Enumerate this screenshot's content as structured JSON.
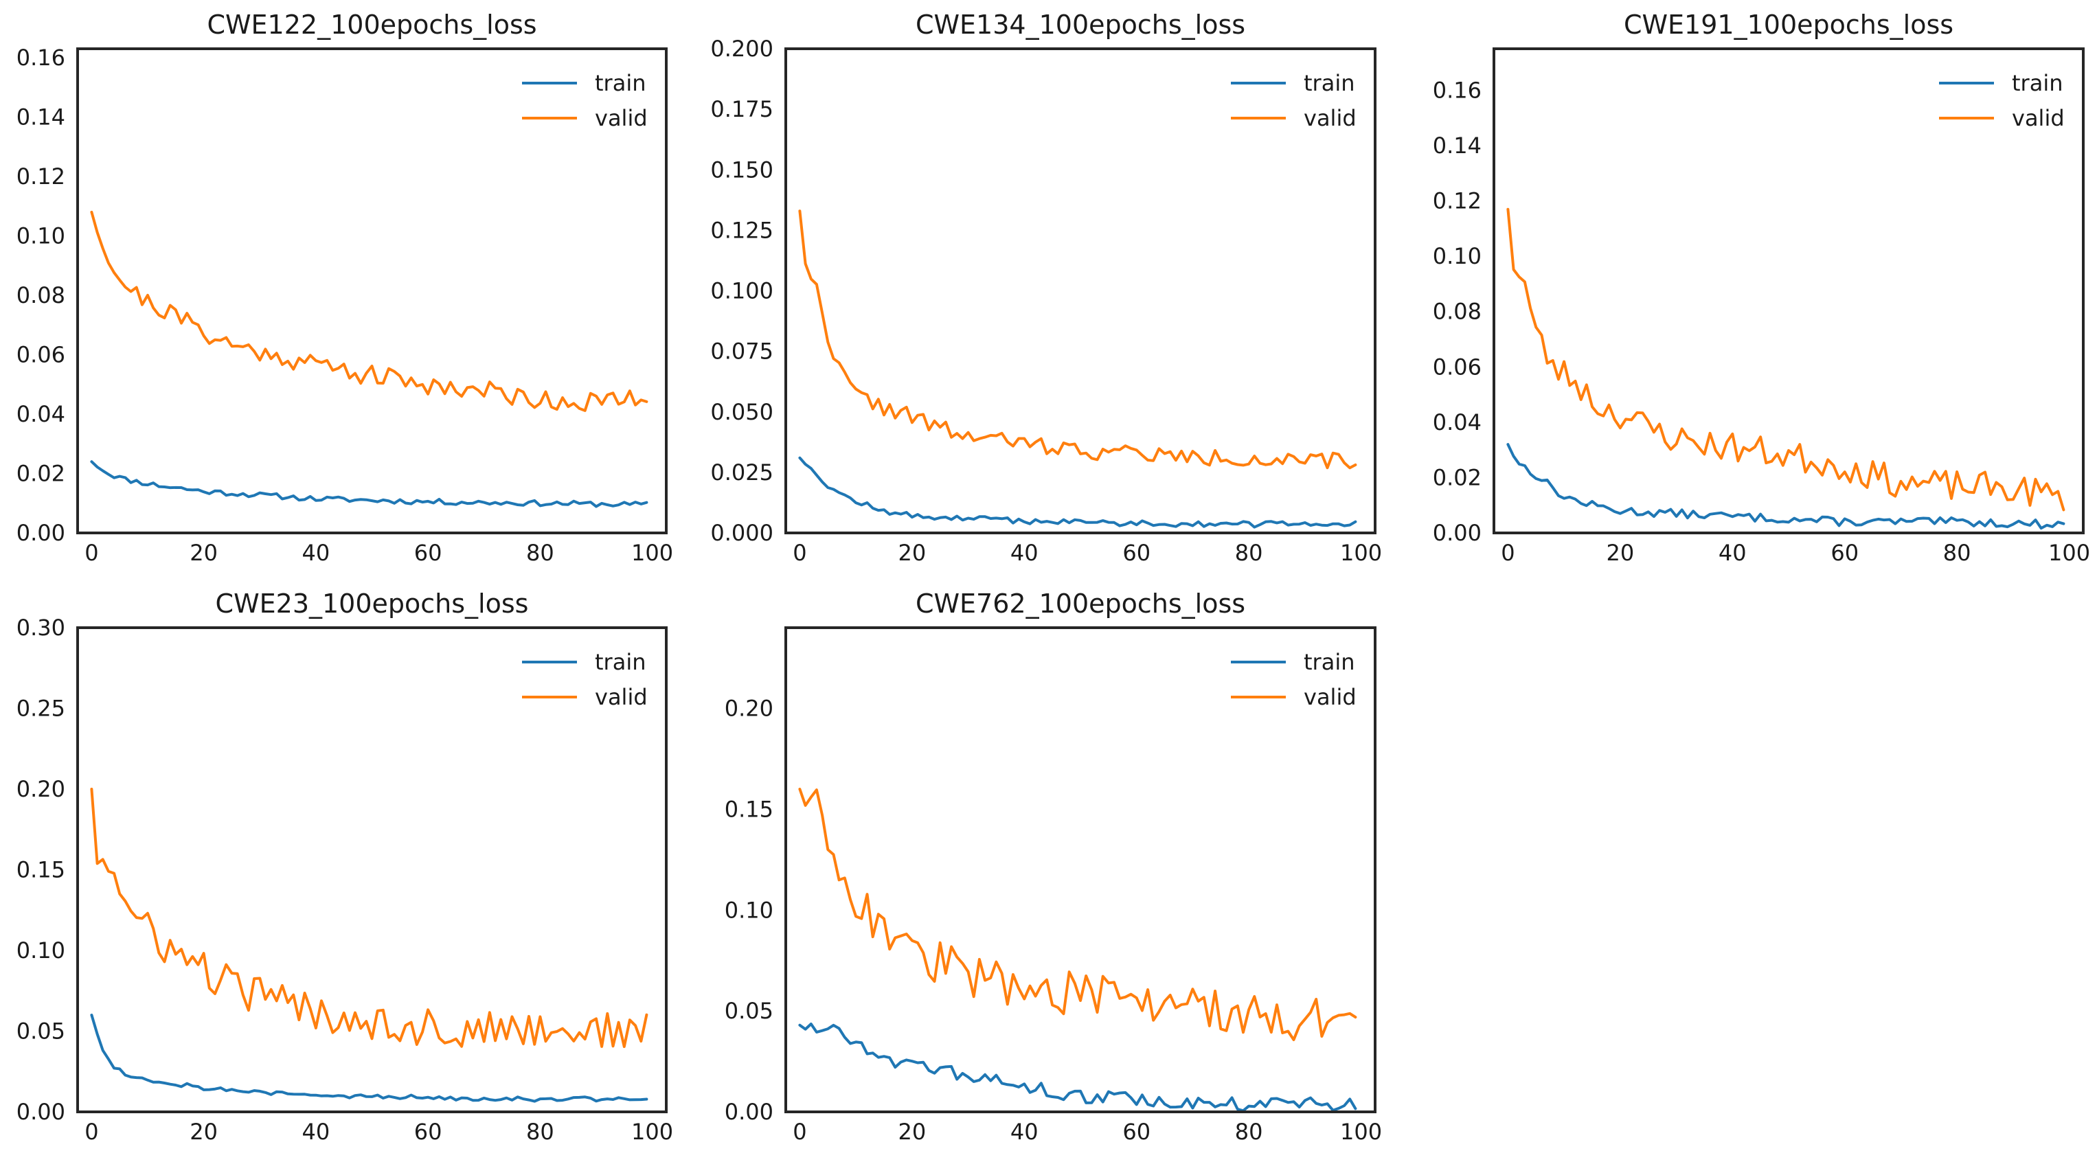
{
  "chart_data": [
    {
      "type": "line",
      "title": "CWE122_100epochs_loss",
      "xlim": [
        -2.5,
        102.5
      ],
      "ylim": [
        0,
        0.163
      ],
      "xticks": [
        0,
        20,
        40,
        60,
        80,
        100
      ],
      "xtick_labels": [
        "0",
        "20",
        "40",
        "60",
        "80",
        "100"
      ],
      "yticks": [
        0,
        0.02,
        0.04,
        0.06,
        0.08,
        0.1,
        0.12,
        0.14,
        0.16
      ],
      "ytick_labels": [
        "0.00",
        "0.02",
        "0.04",
        "0.06",
        "0.08",
        "0.10",
        "0.12",
        "0.14",
        "0.16"
      ],
      "legend": {
        "position": "top-right",
        "entries": [
          "train",
          "valid"
        ]
      },
      "series": [
        {
          "name": "train",
          "color": "#1f77b4",
          "anchors": [
            [
              0,
              0.024
            ],
            [
              3,
              0.02
            ],
            [
              6,
              0.018
            ],
            [
              12,
              0.016
            ],
            [
              20,
              0.014
            ],
            [
              40,
              0.0115
            ],
            [
              60,
              0.0105
            ],
            [
              80,
              0.01
            ],
            [
              99,
              0.0095
            ]
          ],
          "noise": 0.0009,
          "seed": 11
        },
        {
          "name": "valid",
          "color": "#ff7f0e",
          "anchors": [
            [
              0,
              0.108
            ],
            [
              2,
              0.098
            ],
            [
              4,
              0.088
            ],
            [
              8,
              0.08
            ],
            [
              12,
              0.076
            ],
            [
              16,
              0.072
            ],
            [
              20,
              0.068
            ],
            [
              25,
              0.063
            ],
            [
              30,
              0.061
            ],
            [
              40,
              0.057
            ],
            [
              50,
              0.053
            ],
            [
              60,
              0.05
            ],
            [
              70,
              0.048
            ],
            [
              80,
              0.045
            ],
            [
              90,
              0.044
            ],
            [
              99,
              0.045
            ]
          ],
          "noise": 0.0035,
          "seed": 21
        }
      ]
    },
    {
      "type": "line",
      "title": "CWE134_100epochs_loss",
      "xlim": [
        -2.5,
        102.5
      ],
      "ylim": [
        0,
        0.2
      ],
      "xticks": [
        0,
        20,
        40,
        60,
        80,
        100
      ],
      "xtick_labels": [
        "0",
        "20",
        "40",
        "60",
        "80",
        "100"
      ],
      "yticks": [
        0,
        0.025,
        0.05,
        0.075,
        0.1,
        0.125,
        0.15,
        0.175,
        0.2
      ],
      "ytick_labels": [
        "0.000",
        "0.025",
        "0.050",
        "0.075",
        "0.100",
        "0.125",
        "0.150",
        "0.175",
        "0.200"
      ],
      "legend": {
        "position": "top-right",
        "entries": [
          "train",
          "valid"
        ]
      },
      "series": [
        {
          "name": "train",
          "color": "#1f77b4",
          "anchors": [
            [
              0,
              0.031
            ],
            [
              3,
              0.025
            ],
            [
              5,
              0.019
            ],
            [
              10,
              0.013
            ],
            [
              15,
              0.009
            ],
            [
              20,
              0.007
            ],
            [
              40,
              0.005
            ],
            [
              60,
              0.004
            ],
            [
              80,
              0.0035
            ],
            [
              99,
              0.004
            ]
          ],
          "noise": 0.0012,
          "seed": 12
        },
        {
          "name": "valid",
          "color": "#ff7f0e",
          "anchors": [
            [
              0,
              0.133
            ],
            [
              1,
              0.113
            ],
            [
              3,
              0.1
            ],
            [
              5,
              0.082
            ],
            [
              7,
              0.068
            ],
            [
              10,
              0.057
            ],
            [
              15,
              0.052
            ],
            [
              20,
              0.048
            ],
            [
              25,
              0.043
            ],
            [
              30,
              0.04
            ],
            [
              40,
              0.037
            ],
            [
              50,
              0.034
            ],
            [
              60,
              0.033
            ],
            [
              70,
              0.031
            ],
            [
              80,
              0.031
            ],
            [
              90,
              0.029
            ],
            [
              99,
              0.03
            ]
          ],
          "noise": 0.0035,
          "seed": 22
        }
      ]
    },
    {
      "type": "line",
      "title": "CWE191_100epochs_loss",
      "xlim": [
        -2.5,
        102.5
      ],
      "ylim": [
        0,
        0.175
      ],
      "xticks": [
        0,
        20,
        40,
        60,
        80,
        100
      ],
      "xtick_labels": [
        "0",
        "20",
        "40",
        "60",
        "80",
        "100"
      ],
      "yticks": [
        0,
        0.02,
        0.04,
        0.06,
        0.08,
        0.1,
        0.12,
        0.14,
        0.16
      ],
      "ytick_labels": [
        "0.00",
        "0.02",
        "0.04",
        "0.06",
        "0.08",
        "0.10",
        "0.12",
        "0.14",
        "0.16"
      ],
      "legend": {
        "position": "top-right",
        "entries": [
          "train",
          "valid"
        ]
      },
      "series": [
        {
          "name": "train",
          "color": "#1f77b4",
          "anchors": [
            [
              0,
              0.032
            ],
            [
              2,
              0.025
            ],
            [
              5,
              0.021
            ],
            [
              10,
              0.013
            ],
            [
              15,
              0.01
            ],
            [
              20,
              0.008
            ],
            [
              40,
              0.006
            ],
            [
              60,
              0.004
            ],
            [
              80,
              0.004
            ],
            [
              99,
              0.003
            ]
          ],
          "noise": 0.0015,
          "seed": 13
        },
        {
          "name": "valid",
          "color": "#ff7f0e",
          "anchors": [
            [
              0,
              0.117
            ],
            [
              1,
              0.098
            ],
            [
              3,
              0.09
            ],
            [
              5,
              0.072
            ],
            [
              8,
              0.06
            ],
            [
              12,
              0.055
            ],
            [
              16,
              0.046
            ],
            [
              20,
              0.043
            ],
            [
              25,
              0.038
            ],
            [
              30,
              0.034
            ],
            [
              40,
              0.031
            ],
            [
              50,
              0.028
            ],
            [
              60,
              0.024
            ],
            [
              70,
              0.018
            ],
            [
              80,
              0.017
            ],
            [
              90,
              0.016
            ],
            [
              99,
              0.013
            ]
          ],
          "noise": 0.0055,
          "seed": 23
        }
      ]
    },
    {
      "type": "line",
      "title": "CWE23_100epochs_loss",
      "xlim": [
        -2.5,
        102.5
      ],
      "ylim": [
        0,
        0.3
      ],
      "xticks": [
        0,
        20,
        40,
        60,
        80,
        100
      ],
      "xtick_labels": [
        "0",
        "20",
        "40",
        "60",
        "80",
        "100"
      ],
      "yticks": [
        0,
        0.05,
        0.1,
        0.15,
        0.2,
        0.25,
        0.3
      ],
      "ytick_labels": [
        "0.00",
        "0.05",
        "0.10",
        "0.15",
        "0.20",
        "0.25",
        "0.30"
      ],
      "legend": {
        "position": "top-right",
        "entries": [
          "train",
          "valid"
        ]
      },
      "series": [
        {
          "name": "train",
          "color": "#1f77b4",
          "anchors": [
            [
              0,
              0.06
            ],
            [
              2,
              0.038
            ],
            [
              4,
              0.028
            ],
            [
              7,
              0.022
            ],
            [
              10,
              0.02
            ],
            [
              20,
              0.015
            ],
            [
              30,
              0.012
            ],
            [
              40,
              0.01
            ],
            [
              60,
              0.009
            ],
            [
              80,
              0.008
            ],
            [
              99,
              0.008
            ]
          ],
          "noise": 0.0015,
          "seed": 14
        },
        {
          "name": "valid",
          "color": "#ff7f0e",
          "anchors": [
            [
              0,
              0.2
            ],
            [
              1,
              0.16
            ],
            [
              3,
              0.155
            ],
            [
              5,
              0.138
            ],
            [
              7,
              0.12
            ],
            [
              10,
              0.112
            ],
            [
              15,
              0.098
            ],
            [
              20,
              0.088
            ],
            [
              25,
              0.078
            ],
            [
              30,
              0.072
            ],
            [
              40,
              0.062
            ],
            [
              50,
              0.057
            ],
            [
              60,
              0.052
            ],
            [
              70,
              0.05
            ],
            [
              80,
              0.052
            ],
            [
              90,
              0.05
            ],
            [
              99,
              0.05
            ]
          ],
          "noise": 0.012,
          "seed": 24
        }
      ]
    },
    {
      "type": "line",
      "title": "CWE762_100epochs_loss",
      "xlim": [
        -2.5,
        102.5
      ],
      "ylim": [
        0,
        0.24
      ],
      "xticks": [
        0,
        20,
        40,
        60,
        80,
        100
      ],
      "xtick_labels": [
        "0",
        "20",
        "40",
        "60",
        "80",
        "100"
      ],
      "yticks": [
        0,
        0.05,
        0.1,
        0.15,
        0.2
      ],
      "ytick_labels": [
        "0.00",
        "0.05",
        "0.10",
        "0.15",
        "0.20"
      ],
      "legend": {
        "position": "top-right",
        "entries": [
          "train",
          "valid"
        ]
      },
      "series": [
        {
          "name": "train",
          "color": "#1f77b4",
          "anchors": [
            [
              0,
              0.043
            ],
            [
              5,
              0.042
            ],
            [
              10,
              0.035
            ],
            [
              15,
              0.028
            ],
            [
              20,
              0.022
            ],
            [
              30,
              0.018
            ],
            [
              40,
              0.012
            ],
            [
              50,
              0.008
            ],
            [
              60,
              0.006
            ],
            [
              70,
              0.004
            ],
            [
              80,
              0.004
            ],
            [
              90,
              0.004
            ],
            [
              99,
              0.003
            ]
          ],
          "noise": 0.0035,
          "seed": 15
        },
        {
          "name": "valid",
          "color": "#ff7f0e",
          "anchors": [
            [
              0,
              0.16
            ],
            [
              2,
              0.155
            ],
            [
              5,
              0.14
            ],
            [
              8,
              0.115
            ],
            [
              12,
              0.1
            ],
            [
              16,
              0.088
            ],
            [
              20,
              0.078
            ],
            [
              25,
              0.074
            ],
            [
              30,
              0.068
            ],
            [
              40,
              0.062
            ],
            [
              50,
              0.058
            ],
            [
              60,
              0.054
            ],
            [
              70,
              0.052
            ],
            [
              80,
              0.048
            ],
            [
              90,
              0.046
            ],
            [
              99,
              0.041
            ]
          ],
          "noise": 0.011,
          "seed": 25
        }
      ]
    }
  ]
}
